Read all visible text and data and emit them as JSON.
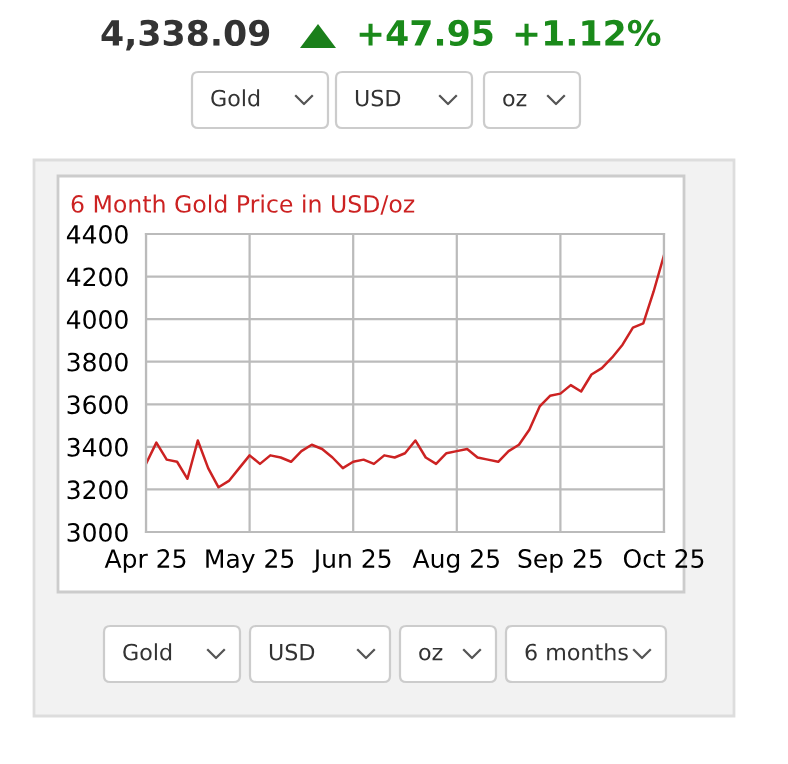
{
  "chart_data": {
    "type": "line",
    "title": "6 Month Gold Price in USD/oz",
    "categories": [
      "Apr 25",
      null,
      null,
      null,
      null,
      null,
      null,
      null,
      null,
      null,
      "May 25",
      null,
      null,
      null,
      null,
      null,
      null,
      null,
      null,
      null,
      "Jun 25",
      null,
      null,
      null,
      null,
      null,
      null,
      null,
      null,
      null,
      "Aug 25",
      null,
      null,
      null,
      null,
      null,
      null,
      null,
      null,
      null,
      "Sep 25",
      null,
      null,
      null,
      null,
      null,
      null,
      null,
      null,
      null,
      "Oct 25"
    ],
    "series": [
      {
        "color": "#cc2222",
        "values": [
          3320,
          3420,
          3340,
          3330,
          3250,
          3430,
          3300,
          3210,
          3240,
          3300,
          3360,
          3320,
          3360,
          3350,
          3330,
          3380,
          3410,
          3390,
          3350,
          3300,
          3330,
          3340,
          3320,
          3360,
          3350,
          3370,
          3430,
          3350,
          3320,
          3370,
          3380,
          3390,
          3350,
          3340,
          3330,
          3380,
          3410,
          3480,
          3590,
          3640,
          3650,
          3690,
          3660,
          3740,
          3770,
          3820,
          3880,
          3960,
          3980,
          4130,
          4300
        ]
      }
    ],
    "ylim": [
      3000,
      4400
    ],
    "yticks": [
      3000,
      3200,
      3400,
      3600,
      3800,
      4000,
      4200,
      4400
    ],
    "grid": true,
    "legend": false,
    "annotations": [
      "4,338.09",
      "+47.95",
      "+1.12%",
      "Gold",
      "USD",
      "oz",
      "Gold",
      "USD",
      "oz",
      "6 months"
    ]
  }
}
